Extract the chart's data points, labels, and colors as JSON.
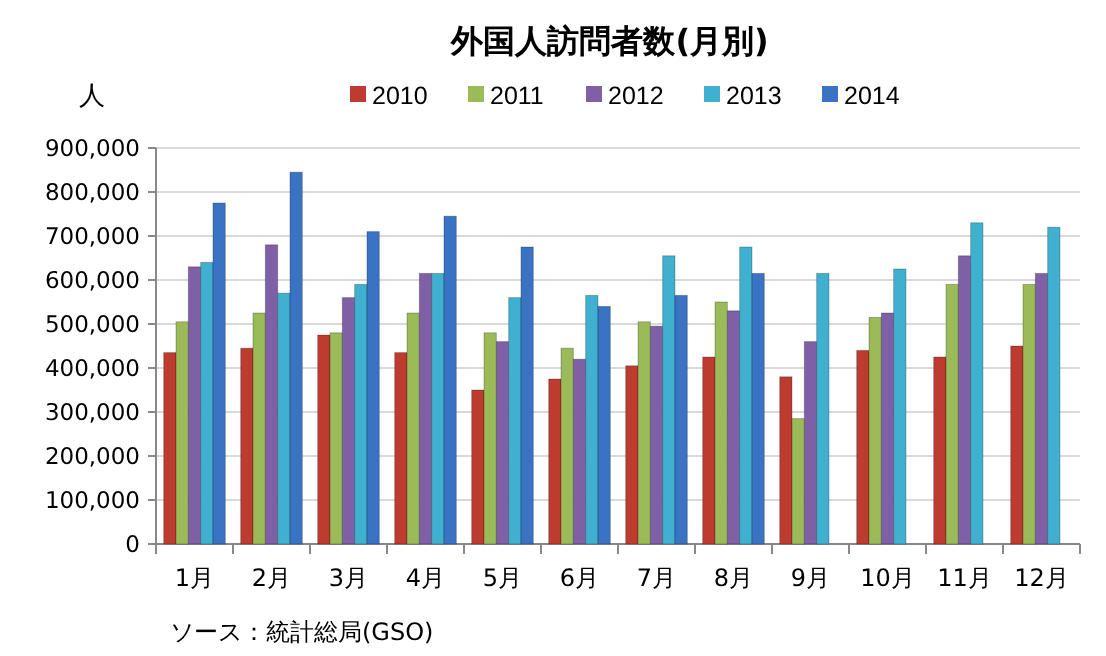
{
  "chart_data": {
    "type": "bar",
    "title": "外国人訪問者数(月別)",
    "ylabel": "人",
    "categories": [
      "1月",
      "2月",
      "3月",
      "4月",
      "5月",
      "6月",
      "7月",
      "8月",
      "9月",
      "10月",
      "11月",
      "12月"
    ],
    "series": [
      {
        "name": "2010",
        "color": "#be3b30",
        "values": [
          435000,
          445000,
          475000,
          435000,
          350000,
          375000,
          405000,
          425000,
          380000,
          440000,
          425000,
          450000
        ]
      },
      {
        "name": "2011",
        "color": "#9bbb59",
        "values": [
          505000,
          525000,
          480000,
          525000,
          480000,
          445000,
          505000,
          550000,
          285000,
          515000,
          590000,
          590000
        ]
      },
      {
        "name": "2012",
        "color": "#7f5fa6",
        "values": [
          630000,
          680000,
          560000,
          615000,
          460000,
          420000,
          495000,
          530000,
          460000,
          525000,
          655000,
          615000
        ]
      },
      {
        "name": "2013",
        "color": "#3fb0d0",
        "values": [
          640000,
          570000,
          590000,
          615000,
          560000,
          565000,
          655000,
          675000,
          615000,
          625000,
          730000,
          720000
        ]
      },
      {
        "name": "2014",
        "color": "#3a73c4",
        "values": [
          775000,
          845000,
          710000,
          745000,
          675000,
          540000,
          565000,
          615000,
          null,
          null,
          null,
          null
        ]
      }
    ],
    "ylim": [
      0,
      900000
    ],
    "yticks": [
      {
        "value": 0,
        "label": "0"
      },
      {
        "value": 100000,
        "label": "100,000"
      },
      {
        "value": 200000,
        "label": "200,000"
      },
      {
        "value": 300000,
        "label": "300,000"
      },
      {
        "value": 400000,
        "label": "400,000"
      },
      {
        "value": 500000,
        "label": "500,000"
      },
      {
        "value": 600000,
        "label": "600,000"
      },
      {
        "value": 700000,
        "label": "700,000"
      },
      {
        "value": 800000,
        "label": "800,000"
      },
      {
        "value": 900000,
        "label": "900,000"
      }
    ],
    "grid": "y",
    "legend": "top",
    "annotations": [
      "ソース：統計総局(GSO)"
    ]
  }
}
